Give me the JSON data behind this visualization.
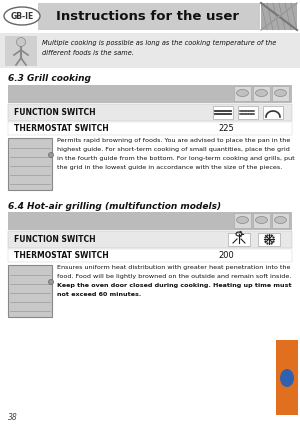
{
  "title": "Instructions for the user",
  "gb_ie_label": "GB-IE",
  "page_number": "38",
  "bg_color": "#ffffff",
  "header_bg": "#cccccc",
  "note_bg": "#e8e8e8",
  "row_bg_dark": "#bbbbbb",
  "row_bg_light": "#e8e8e8",
  "section_note_text_line1": "Multiple cooking is possible as long as the cooking temperature of the",
  "section_note_text_line2": "different foods is the same.",
  "section1_title": "6.3 Grill cooking",
  "section1_function_label": "FUNCTION SWITCH",
  "section1_thermostat_label": "THERMOSTAT SWITCH",
  "section1_thermostat_value": "225",
  "section1_body_line1": "Permits rapid browning of foods. You are advised to place the pan in the",
  "section1_body_line2": "highest guide. For short-term cooking of small quantities, place the grid",
  "section1_body_line3": "in the fourth guide from the bottom. For long-term cooking and grills, put",
  "section1_body_line4": "the grid in the lowest guide in accordance with the size of the pieces.",
  "section2_title": "6.4 Hot-air grilling (multifunction models)",
  "section2_function_label": "FUNCTION SWITCH",
  "section2_thermostat_label": "THERMOSTAT SWITCH",
  "section2_thermostat_value": "200",
  "section2_body_line1": "Ensures uniform heat distribution with greater heat penetration into the",
  "section2_body_line2": "food. Food will be lightly browned on the outside and remain soft inside.",
  "section2_body_bold1": "Keep the oven door closed during cooking. Heating up time must",
  "section2_body_bold2": "not exceed 60 minutes."
}
